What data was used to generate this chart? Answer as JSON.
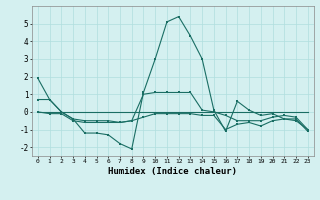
{
  "xlabel": "Humidex (Indice chaleur)",
  "ylabel": "",
  "background_color": "#d4f0f0",
  "grid_color": "#b0dede",
  "line_color": "#1a6e64",
  "x": [
    0,
    1,
    2,
    3,
    4,
    5,
    6,
    7,
    8,
    9,
    10,
    11,
    12,
    13,
    14,
    15,
    16,
    17,
    18,
    19,
    20,
    21,
    22,
    23
  ],
  "line1": [
    1.9,
    0.7,
    0.0,
    -0.4,
    -1.2,
    -1.2,
    -1.3,
    -1.8,
    -2.1,
    1.1,
    3.0,
    5.1,
    5.4,
    4.3,
    3.0,
    0.1,
    -1.1,
    0.6,
    0.1,
    -0.2,
    -0.1,
    -0.4,
    -0.4,
    -1.1
  ],
  "line2": [
    0.0,
    0.0,
    0.0,
    0.0,
    0.0,
    0.0,
    0.0,
    0.0,
    0.0,
    0.0,
    0.0,
    0.0,
    0.0,
    0.0,
    0.0,
    0.0,
    0.0,
    0.0,
    0.0,
    0.0,
    0.0,
    0.0,
    0.0,
    0.0
  ],
  "line3": [
    0.7,
    0.7,
    0.0,
    -0.4,
    -0.5,
    -0.5,
    -0.5,
    -0.6,
    -0.5,
    1.0,
    1.1,
    1.1,
    1.1,
    1.1,
    0.1,
    0.0,
    -0.2,
    -0.5,
    -0.5,
    -0.5,
    -0.3,
    -0.2,
    -0.3,
    -1.0
  ],
  "line4": [
    0.0,
    -0.1,
    -0.1,
    -0.5,
    -0.6,
    -0.6,
    -0.6,
    -0.6,
    -0.5,
    -0.3,
    -0.1,
    -0.1,
    -0.1,
    -0.1,
    -0.2,
    -0.2,
    -1.0,
    -0.7,
    -0.6,
    -0.8,
    -0.5,
    -0.4,
    -0.5,
    -1.0
  ],
  "ylim": [
    -2.5,
    6.0
  ],
  "xlim": [
    -0.5,
    23.5
  ],
  "yticks": [
    -2,
    -1,
    0,
    1,
    2,
    3,
    4,
    5
  ],
  "xtick_labels": [
    "0",
    "1",
    "2",
    "3",
    "4",
    "5",
    "6",
    "7",
    "8",
    "9",
    "10",
    "11",
    "12",
    "13",
    "14",
    "15",
    "16",
    "17",
    "18",
    "19",
    "20",
    "21",
    "22",
    "23"
  ]
}
